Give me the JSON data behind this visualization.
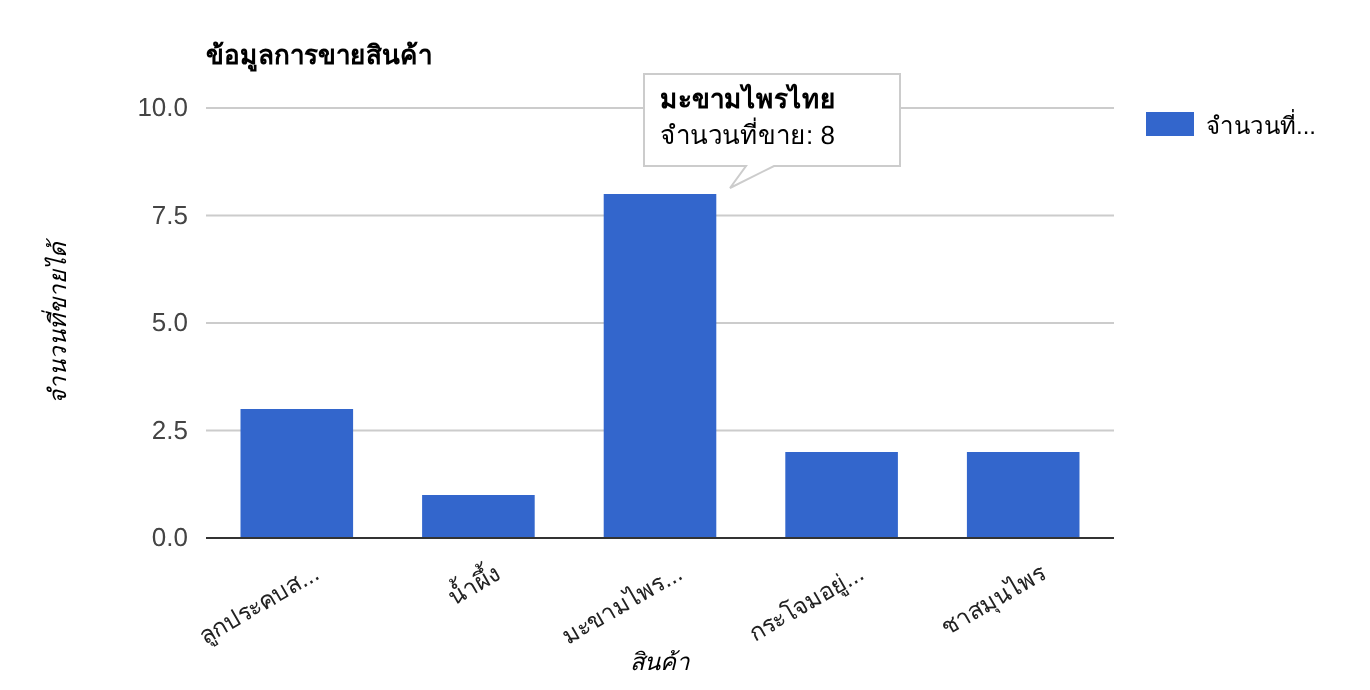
{
  "chart_data": {
    "type": "bar",
    "title": "ข้อมูลการขายสินค้า",
    "xlabel": "สินค้า",
    "ylabel": "จำนวนที่ขายได้",
    "categories": [
      "ลูกประคบส...",
      "น้ำผึ้ง",
      "มะขามไพร...",
      "กระโจมอยู่...",
      "ชาสมุนไพร"
    ],
    "series": [
      {
        "name": "จำนวนที่...",
        "color": "#3366cc",
        "values": [
          3,
          1,
          8,
          2,
          2
        ]
      }
    ],
    "ylim": [
      0,
      10
    ],
    "yticks": [
      {
        "value": 0,
        "label": "0.0"
      },
      2.5,
      {
        "value": 5,
        "label": "5.0"
      },
      7.5,
      {
        "value": 10,
        "label": "10.0"
      }
    ],
    "grid": "y",
    "legend": "top right",
    "annotations": [
      "มะขามไพรไทย",
      "จำนวนที่ขาย: 8"
    ]
  }
}
